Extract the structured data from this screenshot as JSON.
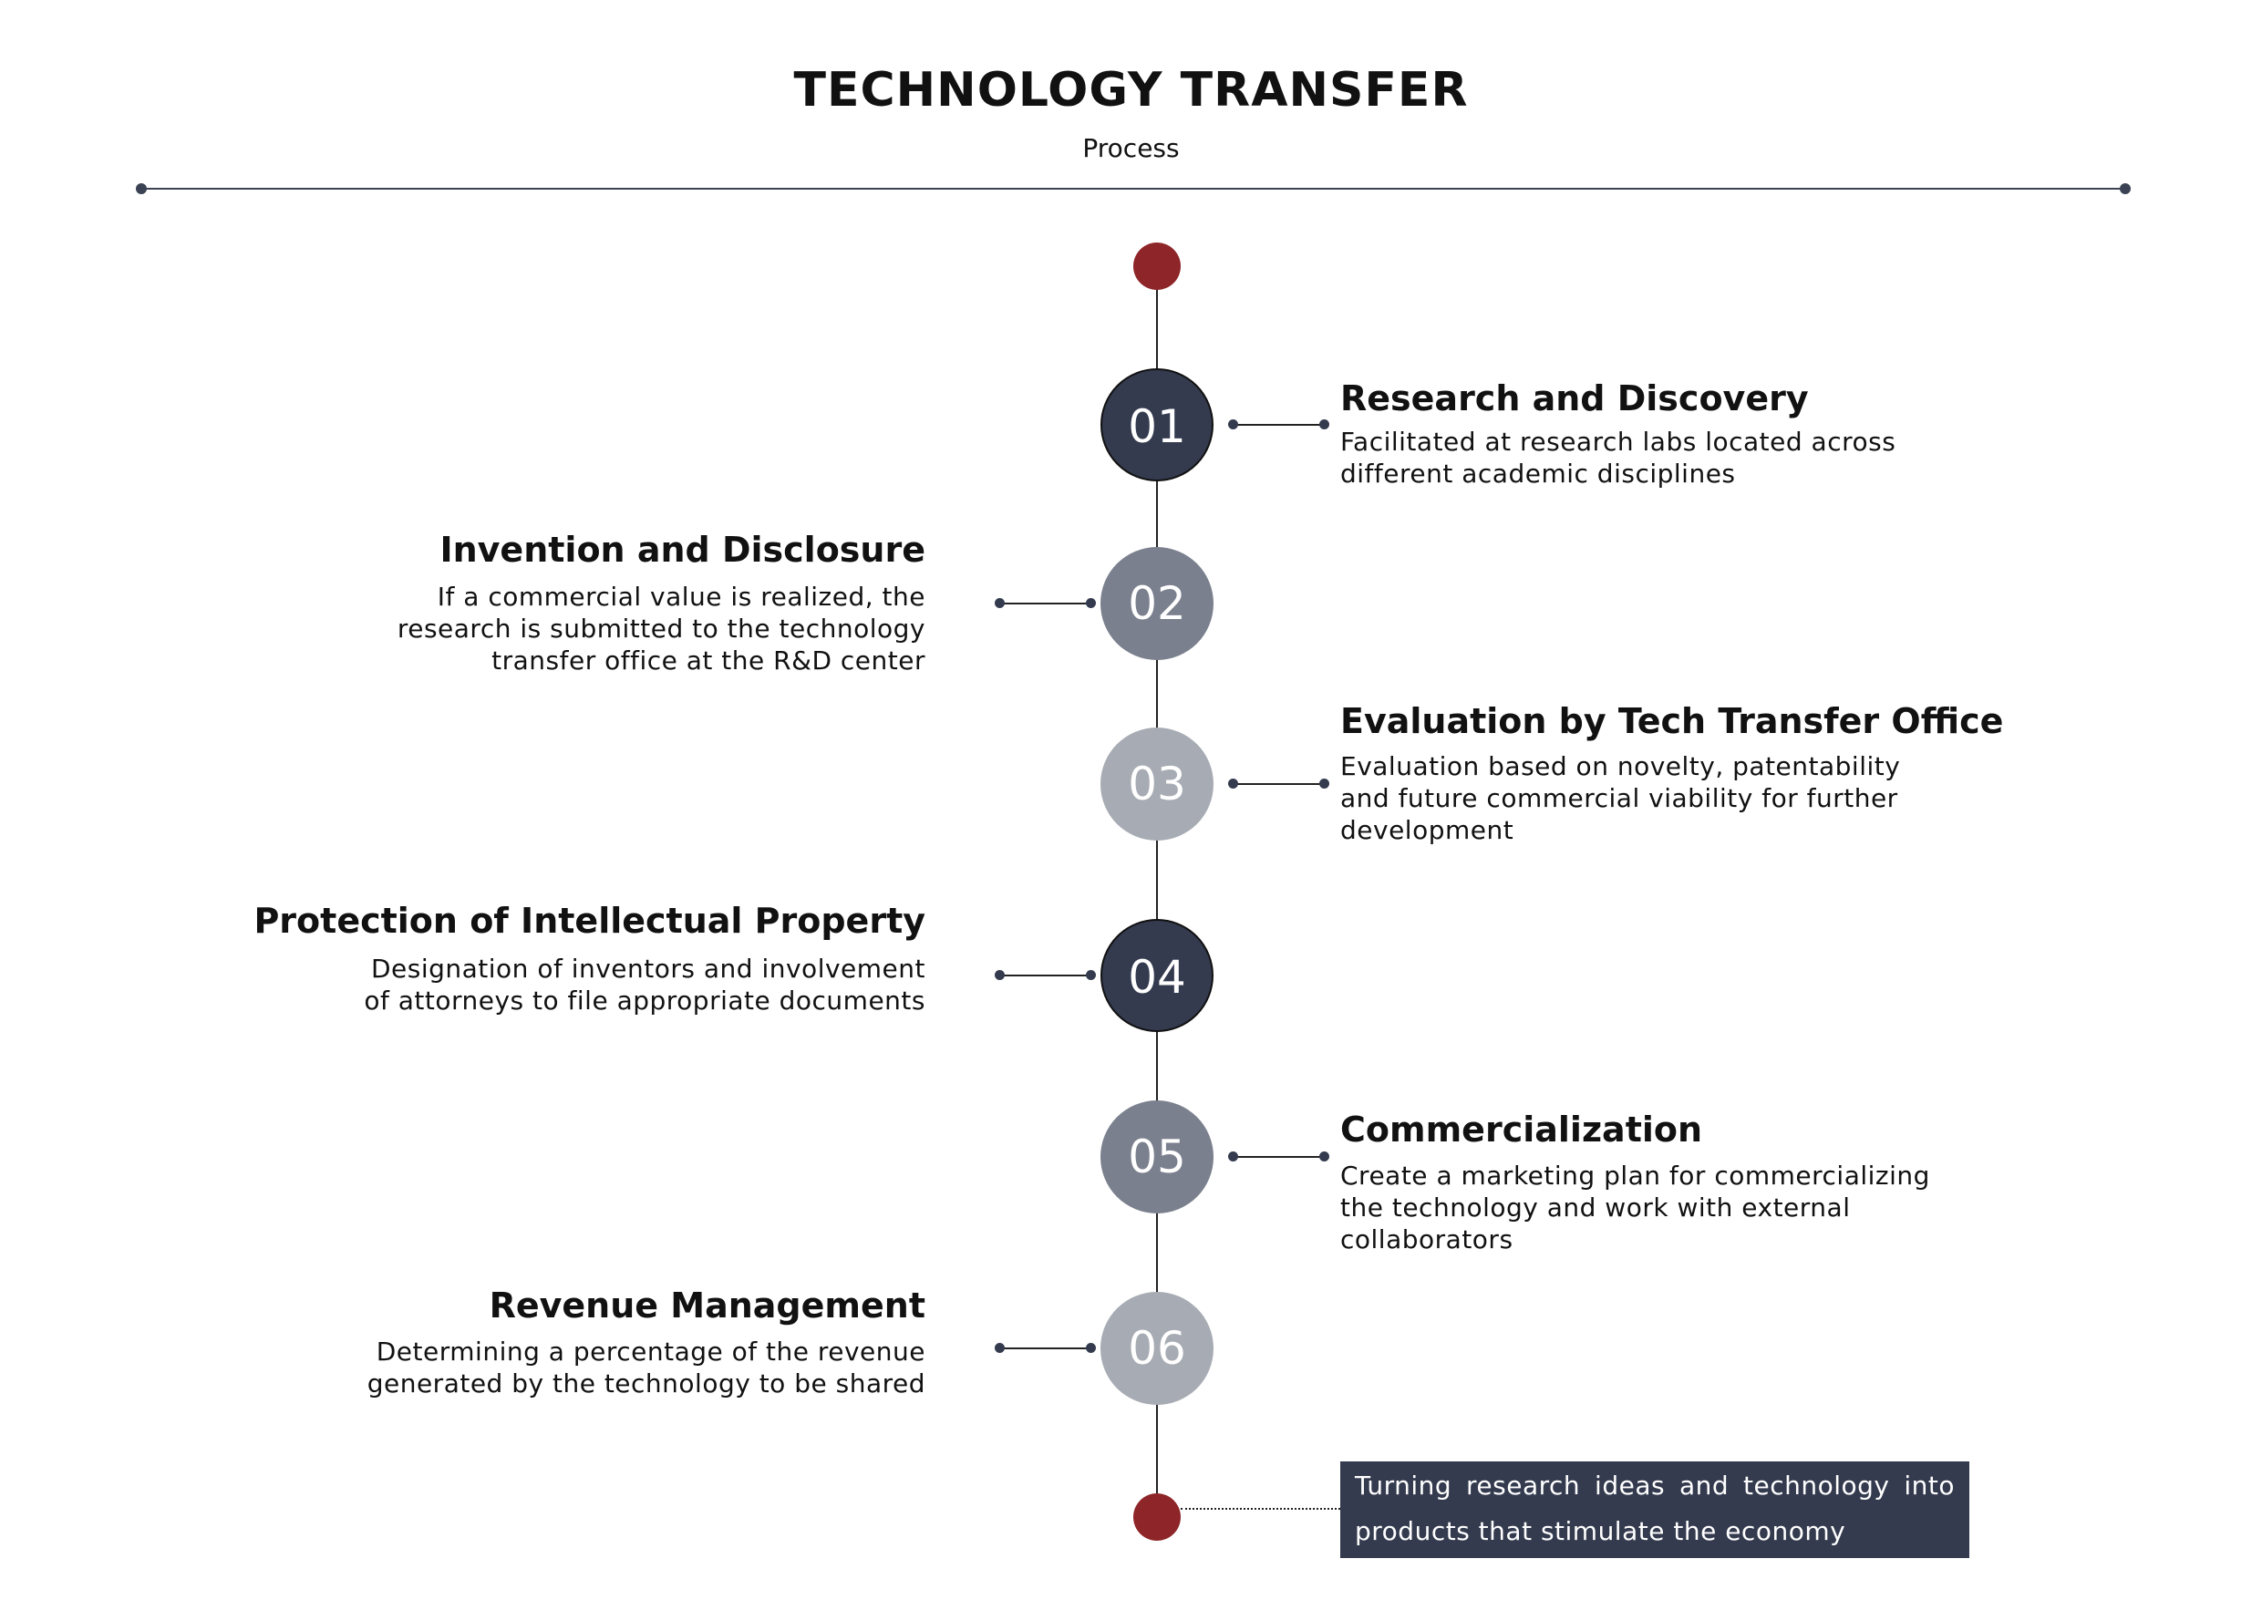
{
  "header": {
    "title": "TECHNOLOGY TRANSFER",
    "subtitle": "Process"
  },
  "colors": {
    "dark": "#343b4f",
    "mid": "#7b808e",
    "light": "#a7abb3",
    "accent_red": "#8e2528"
  },
  "steps": [
    {
      "number": "01",
      "title": "Research and Discovery",
      "description": "Facilitated at research labs located across different academic disciplines"
    },
    {
      "number": "02",
      "title": "Invention and Disclosure",
      "description": "If a commercial value is realized, the research is submitted to the technology transfer office at the R&D center"
    },
    {
      "number": "03",
      "title": "Evaluation by Tech Transfer Office",
      "description": "Evaluation based on novelty, patentability and future commercial viability for further development"
    },
    {
      "number": "04",
      "title": "Protection of Intellectual Property",
      "description": "Designation of inventors and involvement of attorneys to file appropriate documents"
    },
    {
      "number": "05",
      "title": "Commercialization",
      "description": "Create a marketing plan for commercializing the technology and work with external collaborators"
    },
    {
      "number": "06",
      "title": "Revenue Management",
      "description": "Determining a percentage of the revenue generated by the technology to be shared"
    }
  ],
  "callout": {
    "text": "Turning research ideas and technology into products that stimulate the economy"
  }
}
